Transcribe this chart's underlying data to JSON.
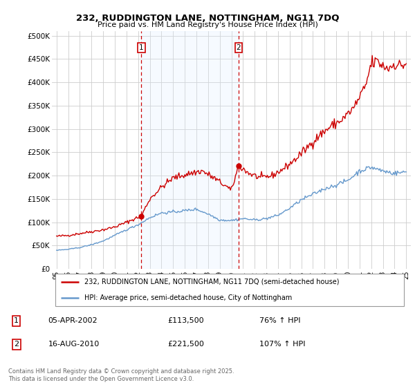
{
  "title_line1": "232, RUDDINGTON LANE, NOTTINGHAM, NG11 7DQ",
  "title_line2": "Price paid vs. HM Land Registry's House Price Index (HPI)",
  "bg_color": "#ffffff",
  "grid_color": "#cccccc",
  "shade_color": "#ddeeff",
  "ytick_labels": [
    "£0",
    "£50K",
    "£100K",
    "£150K",
    "£200K",
    "£250K",
    "£300K",
    "£350K",
    "£400K",
    "£450K",
    "£500K"
  ],
  "yticks": [
    0,
    50000,
    100000,
    150000,
    200000,
    250000,
    300000,
    350000,
    400000,
    450000,
    500000
  ],
  "ylim": [
    0,
    510000
  ],
  "xlim_start": 1994.6,
  "xlim_end": 2025.4,
  "xtick_labels": [
    "95",
    "96",
    "97",
    "98",
    "99",
    "00",
    "01",
    "02",
    "03",
    "04",
    "05",
    "06",
    "07",
    "08",
    "09",
    "10",
    "11",
    "12",
    "13",
    "14",
    "15",
    "16",
    "17",
    "18",
    "19",
    "20",
    "21",
    "22",
    "23",
    "24",
    "25"
  ],
  "xticks": [
    1995,
    1996,
    1997,
    1998,
    1999,
    2000,
    2001,
    2002,
    2003,
    2004,
    2005,
    2006,
    2007,
    2008,
    2009,
    2010,
    2011,
    2012,
    2013,
    2014,
    2015,
    2016,
    2017,
    2018,
    2019,
    2020,
    2021,
    2022,
    2023,
    2024,
    2025
  ],
  "property_color": "#cc0000",
  "hpi_color": "#6699cc",
  "legend_property": "232, RUDDINGTON LANE, NOTTINGHAM, NG11 7DQ (semi-detached house)",
  "legend_hpi": "HPI: Average price, semi-detached house, City of Nottingham",
  "marker1_year": 2002.27,
  "marker1_price": 113500,
  "marker2_year": 2010.62,
  "marker2_price": 221500,
  "annotation1_date": "05-APR-2002",
  "annotation1_price": "£113,500",
  "annotation1_hpi": "76% ↑ HPI",
  "annotation2_date": "16-AUG-2010",
  "annotation2_price": "£221,500",
  "annotation2_hpi": "107% ↑ HPI",
  "footer": "Contains HM Land Registry data © Crown copyright and database right 2025.\nThis data is licensed under the Open Government Licence v3.0."
}
